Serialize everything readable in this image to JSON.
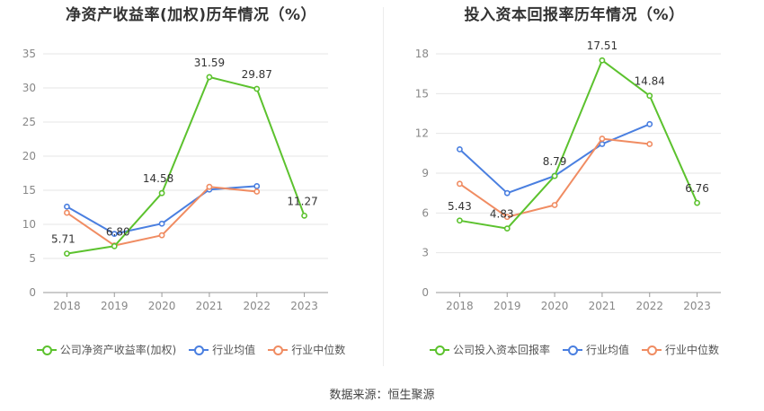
{
  "chart_data": [
    {
      "type": "line",
      "title": "净资产收益率(加权)历年情况（%）",
      "categories": [
        "2018",
        "2019",
        "2020",
        "2021",
        "2022",
        "2023"
      ],
      "ylim": [
        0,
        35
      ],
      "yticks": [
        0,
        5,
        10,
        15,
        20,
        25,
        30,
        35
      ],
      "grid": true,
      "legend_position": "bottom",
      "series": [
        {
          "name": "公司净资产收益率(加权)",
          "color": "#5cc22e",
          "labels": true,
          "values": [
            5.71,
            6.8,
            14.58,
            31.59,
            29.87,
            11.27
          ],
          "label_text": [
            "5.71",
            "6.80",
            "14.58",
            "31.59",
            "29.87",
            "11.27"
          ]
        },
        {
          "name": "行业均值",
          "color": "#4a7fe0",
          "labels": false,
          "values": [
            12.6,
            8.6,
            10.1,
            15.1,
            15.6,
            null
          ]
        },
        {
          "name": "行业中位数",
          "color": "#f08c62",
          "labels": false,
          "values": [
            11.7,
            6.9,
            8.4,
            15.5,
            14.8,
            null
          ]
        }
      ]
    },
    {
      "type": "line",
      "title": "投入资本回报率历年情况（%）",
      "categories": [
        "2018",
        "2019",
        "2020",
        "2021",
        "2022",
        "2023"
      ],
      "ylim": [
        0,
        18
      ],
      "yticks": [
        0,
        3,
        6,
        9,
        12,
        15,
        18
      ],
      "grid": true,
      "legend_position": "bottom",
      "series": [
        {
          "name": "公司投入资本回报率",
          "color": "#5cc22e",
          "labels": true,
          "values": [
            5.43,
            4.83,
            8.79,
            17.51,
            14.84,
            6.76
          ],
          "label_text": [
            "5.43",
            "4.83",
            "8.79",
            "17.51",
            "14.84",
            "6.76"
          ]
        },
        {
          "name": "行业均值",
          "color": "#4a7fe0",
          "labels": false,
          "values": [
            10.8,
            7.5,
            8.8,
            11.2,
            12.7,
            null
          ]
        },
        {
          "name": "行业中位数",
          "color": "#f08c62",
          "labels": false,
          "values": [
            8.2,
            5.7,
            6.6,
            11.6,
            11.2,
            null
          ]
        }
      ]
    }
  ],
  "source_text": "数据来源：恒生聚源"
}
